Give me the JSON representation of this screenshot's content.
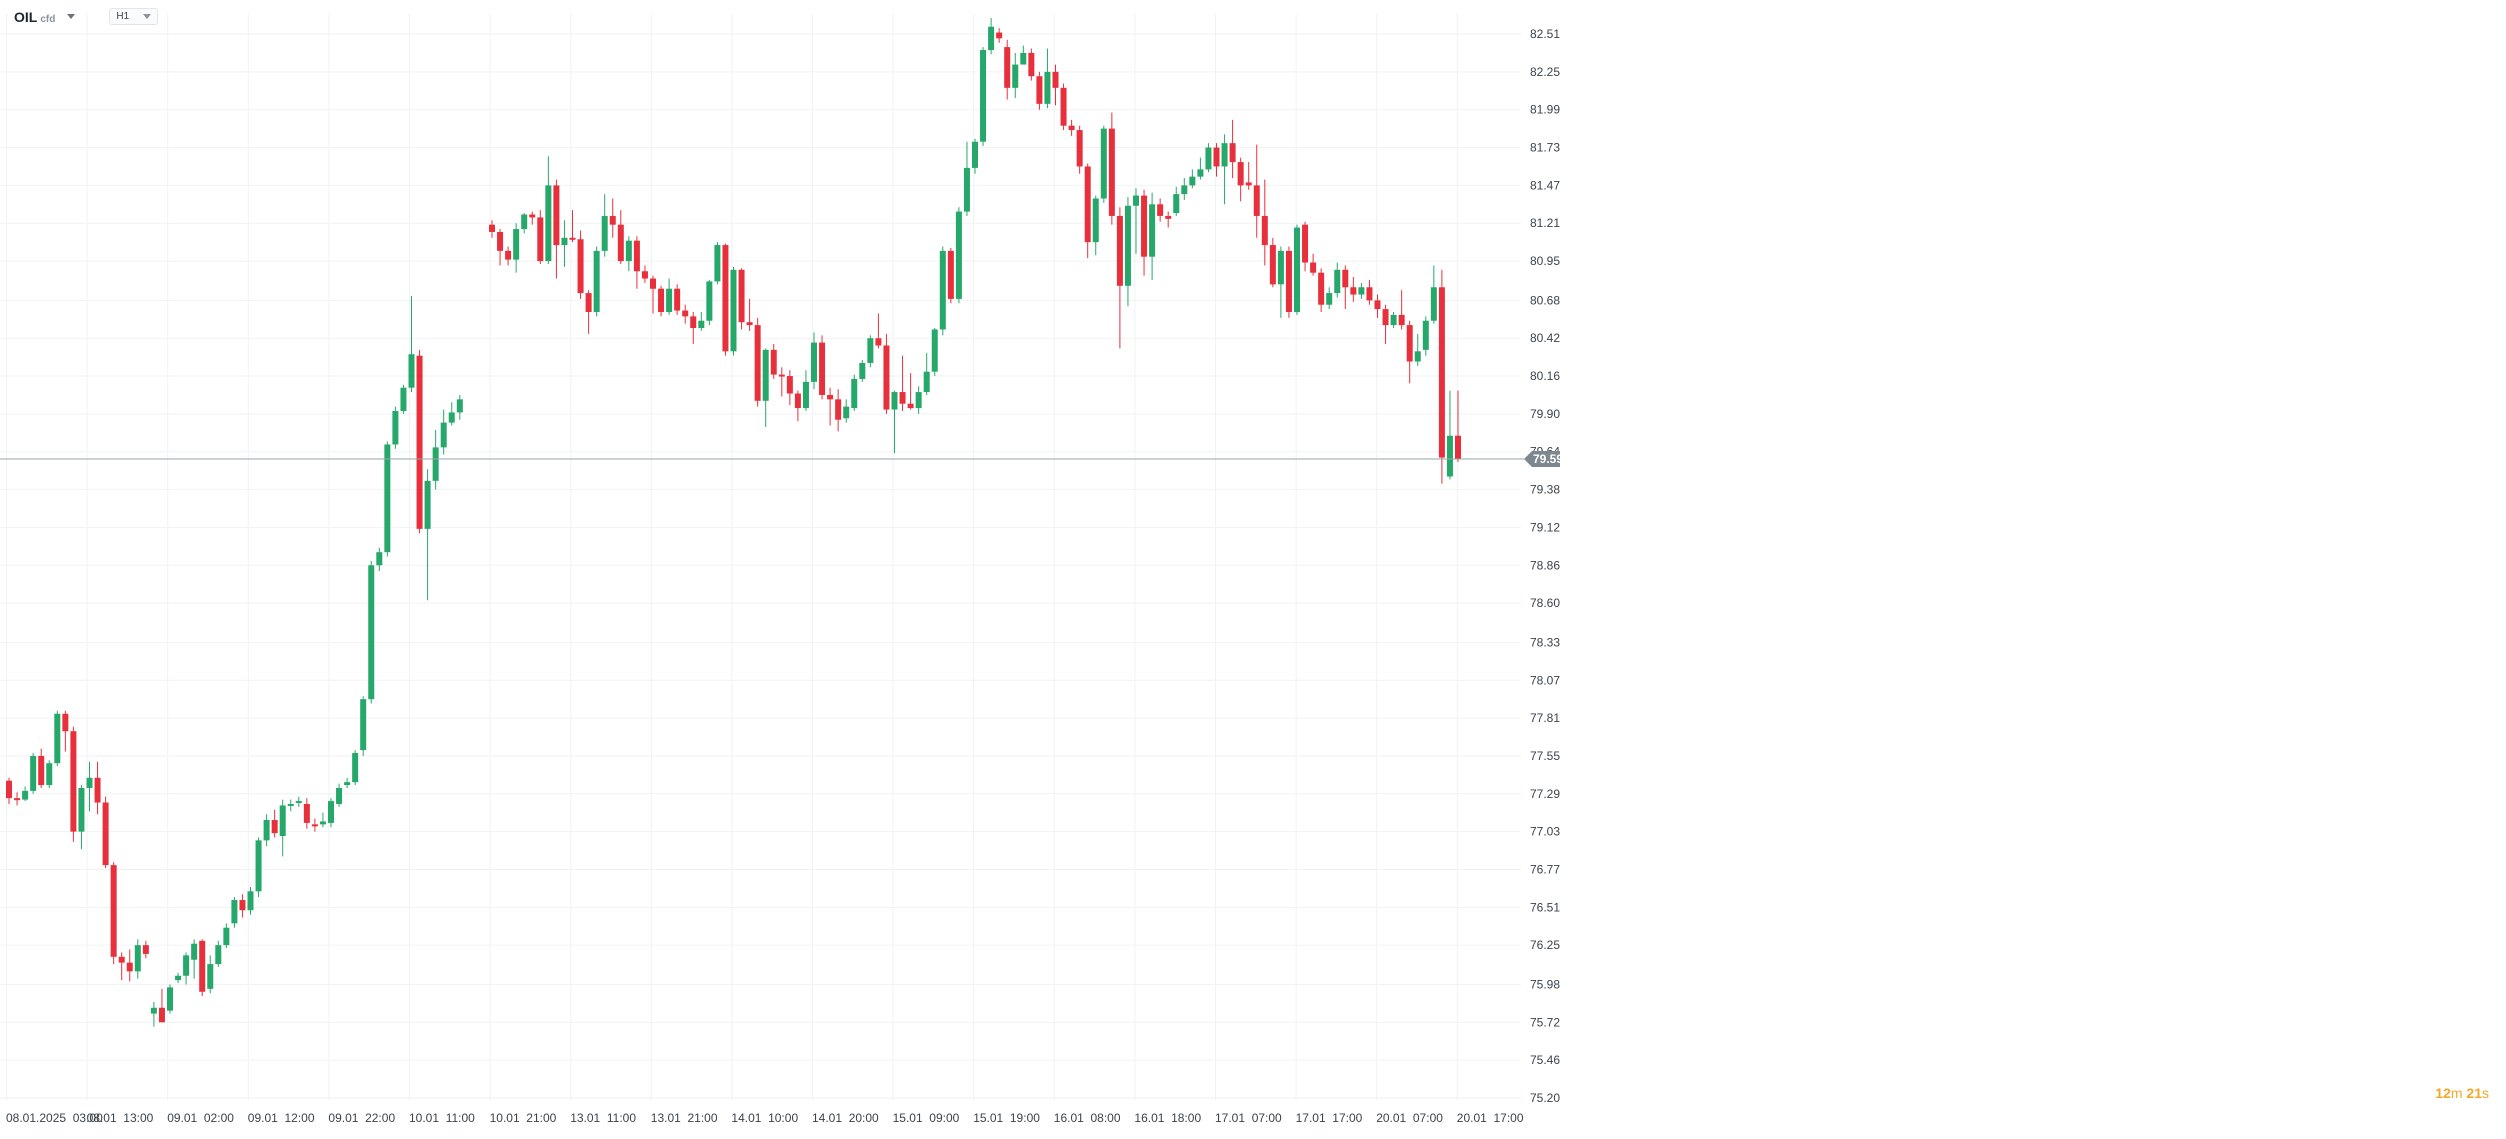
{
  "header": {
    "symbol": "OIL",
    "symbol_sub": "cfd",
    "timeframe": "H1"
  },
  "timer": {
    "minutes": "12",
    "minutes_unit": "m",
    "seconds": "21",
    "seconds_unit": "s"
  },
  "colors": {
    "up": "#26a86b",
    "down": "#e8303c",
    "grid": "#f0f2f4",
    "price_line": "#9aa3ab",
    "price_tag": "#7d8790",
    "timer": "#f0a92b"
  },
  "icons": [
    "chevron-down-icon"
  ],
  "chart_data": {
    "type": "candlestick",
    "title": "",
    "current_price": 79.59,
    "ylim": [
      75.2,
      82.64
    ],
    "y_ticks": [
      82.51,
      82.25,
      81.99,
      81.73,
      81.47,
      81.21,
      80.95,
      80.68,
      80.42,
      80.16,
      79.9,
      79.64,
      79.38,
      79.12,
      78.86,
      78.6,
      78.33,
      78.07,
      77.81,
      77.55,
      77.29,
      77.03,
      76.77,
      76.51,
      76.25,
      75.98,
      75.72,
      75.46,
      75.2
    ],
    "x_ticks": [
      "08.01.2025  03:00",
      "08.01  13:00",
      "09.01  02:00",
      "09.01  12:00",
      "09.01  22:00",
      "10.01  11:00",
      "10.01  21:00",
      "13.01  11:00",
      "13.01  21:00",
      "14.01  10:00",
      "14.01  20:00",
      "15.01  09:00",
      "15.01  19:00",
      "16.01  08:00",
      "16.01  18:00",
      "17.01  07:00",
      "17.01  17:00",
      "20.01  07:00",
      "20.01  17:00"
    ],
    "candles": [
      [
        77.38,
        77.26,
        77.4,
        77.22
      ],
      [
        77.26,
        77.25,
        77.3,
        77.21
      ],
      [
        77.25,
        77.31,
        77.34,
        77.24
      ],
      [
        77.31,
        77.55,
        77.57,
        77.29
      ],
      [
        77.55,
        77.35,
        77.6,
        77.33
      ],
      [
        77.35,
        77.5,
        77.52,
        77.33
      ],
      [
        77.5,
        77.84,
        77.86,
        77.48
      ],
      [
        77.84,
        77.72,
        77.86,
        77.58
      ],
      [
        77.72,
        77.03,
        77.75,
        76.96
      ],
      [
        77.03,
        77.33,
        77.35,
        76.91
      ],
      [
        77.33,
        77.4,
        77.51,
        77.17
      ],
      [
        77.4,
        77.23,
        77.51,
        77.15
      ],
      [
        77.23,
        76.8,
        77.27,
        76.78
      ],
      [
        76.8,
        76.17,
        76.82,
        76.12
      ],
      [
        76.17,
        76.13,
        76.2,
        76.01
      ],
      [
        76.13,
        76.07,
        76.22,
        76.0
      ],
      [
        76.07,
        76.25,
        76.29,
        76.02
      ],
      [
        76.25,
        76.19,
        76.28,
        76.16
      ],
      [
        75.78,
        75.82,
        75.86,
        75.69
      ],
      [
        75.82,
        75.72,
        75.95,
        75.72
      ],
      [
        75.8,
        75.96,
        75.98,
        75.78
      ],
      [
        76.01,
        76.04,
        76.06,
        75.99
      ],
      [
        76.04,
        76.18,
        76.2,
        75.98
      ],
      [
        76.15,
        76.26,
        76.29,
        76.02
      ],
      [
        76.28,
        75.93,
        76.29,
        75.9
      ],
      [
        75.95,
        76.12,
        76.18,
        75.92
      ],
      [
        76.12,
        76.25,
        76.28,
        76.1
      ],
      [
        76.25,
        76.37,
        76.4,
        76.23
      ],
      [
        76.4,
        76.56,
        76.58,
        76.37
      ],
      [
        76.56,
        76.49,
        76.6,
        76.44
      ],
      [
        76.49,
        76.62,
        76.65,
        76.46
      ],
      [
        76.62,
        76.97,
        76.99,
        76.58
      ],
      [
        76.97,
        77.11,
        77.15,
        76.93
      ],
      [
        77.11,
        77.02,
        77.18,
        76.99
      ],
      [
        77.0,
        77.21,
        77.25,
        76.86
      ],
      [
        77.21,
        77.22,
        77.25,
        77.17
      ],
      [
        77.23,
        77.24,
        77.27,
        77.2
      ],
      [
        77.22,
        77.09,
        77.26,
        77.05
      ],
      [
        77.08,
        77.07,
        77.12,
        77.03
      ],
      [
        77.08,
        77.1,
        77.16,
        77.06
      ],
      [
        77.09,
        77.24,
        77.26,
        77.06
      ],
      [
        77.22,
        77.33,
        77.36,
        77.2
      ],
      [
        77.35,
        77.37,
        77.4,
        77.33
      ],
      [
        77.37,
        77.57,
        77.59,
        77.35
      ],
      [
        77.59,
        77.94,
        77.96,
        77.55
      ],
      [
        77.94,
        78.86,
        78.89,
        77.91
      ],
      [
        78.86,
        78.95,
        78.98,
        78.82
      ],
      [
        78.95,
        79.69,
        79.71,
        78.92
      ],
      [
        79.69,
        79.92,
        79.95,
        79.66
      ],
      [
        79.92,
        80.08,
        80.1,
        79.9
      ],
      [
        80.08,
        80.31,
        80.71,
        80.05
      ],
      [
        80.3,
        79.11,
        80.34,
        79.08
      ],
      [
        79.11,
        79.44,
        79.52,
        78.62
      ],
      [
        79.44,
        79.67,
        79.79,
        79.38
      ],
      [
        79.67,
        79.84,
        79.93,
        79.62
      ],
      [
        79.84,
        79.91,
        79.98,
        79.82
      ],
      [
        79.91,
        80.0,
        80.03,
        79.86
      ],
      [
        null,
        null,
        null,
        null
      ],
      [
        null,
        null,
        null,
        null
      ],
      [
        null,
        null,
        null,
        null
      ],
      [
        81.2,
        81.15,
        81.23,
        81.11
      ],
      [
        81.15,
        81.02,
        81.17,
        80.92
      ],
      [
        81.02,
        80.96,
        81.05,
        80.92
      ],
      [
        80.96,
        81.17,
        81.21,
        80.87
      ],
      [
        81.17,
        81.27,
        81.28,
        81.14
      ],
      [
        81.27,
        81.25,
        81.29,
        81.2
      ],
      [
        81.25,
        80.95,
        81.3,
        80.93
      ],
      [
        80.95,
        81.47,
        81.67,
        80.93
      ],
      [
        81.47,
        81.06,
        81.51,
        80.83
      ],
      [
        81.06,
        81.11,
        81.23,
        80.91
      ],
      [
        81.11,
        81.1,
        81.3,
        81.08
      ],
      [
        81.1,
        80.73,
        81.16,
        80.69
      ],
      [
        80.73,
        80.6,
        80.75,
        80.45
      ],
      [
        80.6,
        81.02,
        81.05,
        80.57
      ],
      [
        81.02,
        81.26,
        81.41,
        80.98
      ],
      [
        81.26,
        81.2,
        81.38,
        81.11
      ],
      [
        81.2,
        80.95,
        81.3,
        80.93
      ],
      [
        80.95,
        81.09,
        81.12,
        80.88
      ],
      [
        81.09,
        80.88,
        81.12,
        80.76
      ],
      [
        80.88,
        80.83,
        80.92,
        80.8
      ],
      [
        80.83,
        80.76,
        80.85,
        80.59
      ],
      [
        80.76,
        80.6,
        80.78,
        80.57
      ],
      [
        80.6,
        80.76,
        80.83,
        80.58
      ],
      [
        80.76,
        80.61,
        80.79,
        80.58
      ],
      [
        80.61,
        80.57,
        80.65,
        80.52
      ],
      [
        80.57,
        80.49,
        80.6,
        80.38
      ],
      [
        80.49,
        80.54,
        80.6,
        80.47
      ],
      [
        80.54,
        80.81,
        80.82,
        80.51
      ],
      [
        80.81,
        81.06,
        81.08,
        80.79
      ],
      [
        81.06,
        80.33,
        81.07,
        80.3
      ],
      [
        80.33,
        80.89,
        80.91,
        80.3
      ],
      [
        80.89,
        80.53,
        80.9,
        80.48
      ],
      [
        80.53,
        80.51,
        80.69,
        80.47
      ],
      [
        80.51,
        79.99,
        80.56,
        79.95
      ],
      [
        79.99,
        80.34,
        80.35,
        79.81
      ],
      [
        80.34,
        80.17,
        80.38,
        80.14
      ],
      [
        80.17,
        80.16,
        80.22,
        80.02
      ],
      [
        80.16,
        80.04,
        80.2,
        79.96
      ],
      [
        80.04,
        79.94,
        80.06,
        79.85
      ],
      [
        79.94,
        80.12,
        80.2,
        79.92
      ],
      [
        80.12,
        80.39,
        80.46,
        80.07
      ],
      [
        80.39,
        80.03,
        80.44,
        80.0
      ],
      [
        80.03,
        80.0,
        80.08,
        79.82
      ],
      [
        80.0,
        79.86,
        80.07,
        79.78
      ],
      [
        79.87,
        79.95,
        80.0,
        79.84
      ],
      [
        79.94,
        80.14,
        80.17,
        79.92
      ],
      [
        80.14,
        80.25,
        80.27,
        80.12
      ],
      [
        80.25,
        80.42,
        80.44,
        80.22
      ],
      [
        80.42,
        80.37,
        80.59,
        80.35
      ],
      [
        80.37,
        79.93,
        80.45,
        79.9
      ],
      [
        79.93,
        80.05,
        80.06,
        79.63
      ],
      [
        80.05,
        79.97,
        80.3,
        79.92
      ],
      [
        79.97,
        79.94,
        80.18,
        79.93
      ],
      [
        79.94,
        80.05,
        80.09,
        79.9
      ],
      [
        80.05,
        80.19,
        80.32,
        80.03
      ],
      [
        80.19,
        80.48,
        80.49,
        80.16
      ],
      [
        80.48,
        81.02,
        81.05,
        80.44
      ],
      [
        81.02,
        80.69,
        81.04,
        80.66
      ],
      [
        80.69,
        81.29,
        81.32,
        80.66
      ],
      [
        81.29,
        81.59,
        81.77,
        81.26
      ],
      [
        81.59,
        81.77,
        81.79,
        81.55
      ],
      [
        81.77,
        82.4,
        82.42,
        81.74
      ],
      [
        82.4,
        82.56,
        82.62,
        82.37
      ],
      [
        82.52,
        82.48,
        82.55,
        82.45
      ],
      [
        82.42,
        82.14,
        82.47,
        82.06
      ],
      [
        82.14,
        82.3,
        82.38,
        82.07
      ],
      [
        82.3,
        82.38,
        82.43,
        82.32
      ],
      [
        82.38,
        82.22,
        82.41,
        82.19
      ],
      [
        82.22,
        82.03,
        82.25,
        81.99
      ],
      [
        82.03,
        82.25,
        82.41,
        82.0
      ],
      [
        82.25,
        82.14,
        82.3,
        82.02
      ],
      [
        82.14,
        81.88,
        82.17,
        81.85
      ],
      [
        81.88,
        81.85,
        81.92,
        81.81
      ],
      [
        81.85,
        81.6,
        81.88,
        81.55
      ],
      [
        81.6,
        81.08,
        81.62,
        80.97
      ],
      [
        81.08,
        81.38,
        81.4,
        80.99
      ],
      [
        81.38,
        81.86,
        81.88,
        81.35
      ],
      [
        81.86,
        81.26,
        81.97,
        81.2
      ],
      [
        81.26,
        80.78,
        81.32,
        80.35
      ],
      [
        80.78,
        81.33,
        81.39,
        80.64
      ],
      [
        81.33,
        81.4,
        81.45,
        81.0
      ],
      [
        81.4,
        80.98,
        81.44,
        80.85
      ],
      [
        80.98,
        81.34,
        81.42,
        80.82
      ],
      [
        81.34,
        81.26,
        81.38,
        81.22
      ],
      [
        81.26,
        81.24,
        81.29,
        81.18
      ],
      [
        81.28,
        81.41,
        81.46,
        81.26
      ],
      [
        81.41,
        81.47,
        81.52,
        81.37
      ],
      [
        81.47,
        81.53,
        81.58,
        81.45
      ],
      [
        81.53,
        81.58,
        81.66,
        81.51
      ],
      [
        81.58,
        81.73,
        81.76,
        81.56
      ],
      [
        81.73,
        81.6,
        81.76,
        81.53
      ],
      [
        81.6,
        81.76,
        81.82,
        81.34
      ],
      [
        81.76,
        81.63,
        81.92,
        81.52
      ],
      [
        81.63,
        81.47,
        81.66,
        81.36
      ],
      [
        81.49,
        81.47,
        81.63,
        81.44
      ],
      [
        81.47,
        81.26,
        81.75,
        81.11
      ],
      [
        81.26,
        81.06,
        81.51,
        80.92
      ],
      [
        81.06,
        80.79,
        81.11,
        80.77
      ],
      [
        80.79,
        81.02,
        81.05,
        80.56
      ],
      [
        81.02,
        80.6,
        81.05,
        80.56
      ],
      [
        80.6,
        81.18,
        81.2,
        80.58
      ],
      [
        81.2,
        80.94,
        81.22,
        80.88
      ],
      [
        80.94,
        80.87,
        81.0,
        80.85
      ],
      [
        80.87,
        80.65,
        80.9,
        80.6
      ],
      [
        80.65,
        80.73,
        80.77,
        80.62
      ],
      [
        80.73,
        80.89,
        80.94,
        80.7
      ],
      [
        80.89,
        80.77,
        80.92,
        80.62
      ],
      [
        80.77,
        80.72,
        80.84,
        80.67
      ],
      [
        80.72,
        80.77,
        80.8,
        80.69
      ],
      [
        80.77,
        80.68,
        80.82,
        80.65
      ],
      [
        80.68,
        80.62,
        80.72,
        80.56
      ],
      [
        80.62,
        80.51,
        80.65,
        80.38
      ],
      [
        80.51,
        80.58,
        80.6,
        80.49
      ],
      [
        80.58,
        80.51,
        80.75,
        80.48
      ],
      [
        80.51,
        80.26,
        80.54,
        80.11
      ],
      [
        80.26,
        80.33,
        80.45,
        80.23
      ],
      [
        80.34,
        80.54,
        80.57,
        80.3
      ],
      [
        80.54,
        80.77,
        80.92,
        80.52
      ],
      [
        80.77,
        79.6,
        80.89,
        79.42
      ],
      [
        79.47,
        79.75,
        80.06,
        79.45
      ],
      [
        79.75,
        79.59,
        80.06,
        79.57
      ]
    ]
  }
}
